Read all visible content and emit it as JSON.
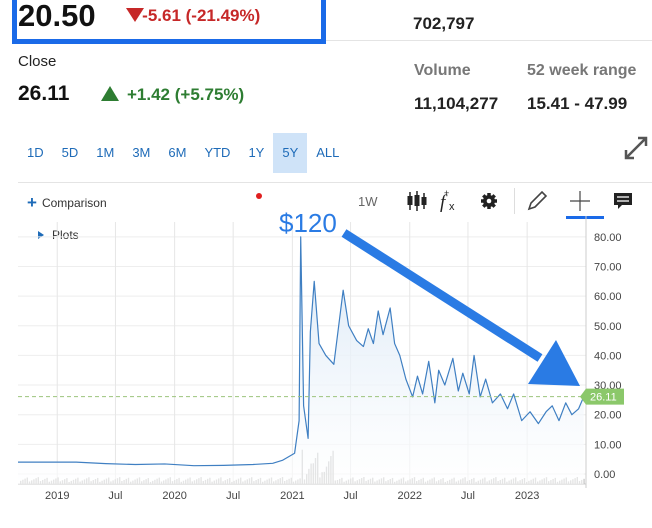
{
  "header": {
    "price": "20.50",
    "change": "-5.61 (-21.49%)",
    "previous_volume": "702,797"
  },
  "close": {
    "label": "Close",
    "price": "26.11",
    "change": "+1.42 (+5.75%)"
  },
  "stats": {
    "volume_label": "Volume",
    "volume_value": "11,104,277",
    "range_label": "52 week range",
    "range_value": "15.41 - 47.99"
  },
  "time_ranges": [
    "1D",
    "5D",
    "1M",
    "3M",
    "6M",
    "YTD",
    "1Y",
    "5Y",
    "ALL"
  ],
  "active_range": "5Y",
  "chart_controls": {
    "comparison_label": "Comparison",
    "plots_label": "Plots",
    "interval_label": "1W"
  },
  "annotation": {
    "text": "$120"
  },
  "colors": {
    "line": "#3f7fc2",
    "area": "#d7e6f5",
    "down": "#c62828",
    "up": "#2e7d32",
    "accent": "#1a6ae8",
    "last_price_tag": "#8bc86a"
  },
  "icons": [
    "plus-icon",
    "play-icon",
    "candlestick-icon",
    "function-icon",
    "gear-icon",
    "pencil-icon",
    "crosshair-icon",
    "comment-icon",
    "expand-icon",
    "arrow-annotation"
  ],
  "chart_data": {
    "type": "area",
    "title": "",
    "x_tick_labels": [
      "2019",
      "Jul",
      "2020",
      "Jul",
      "2021",
      "Jul",
      "2022",
      "Jul",
      "2023"
    ],
    "y_tick_labels": [
      "0.00",
      "10.00",
      "20.00",
      "30.00",
      "40.00",
      "50.00",
      "60.00",
      "70.00",
      "80.00"
    ],
    "ylim": [
      0,
      85
    ],
    "grid": true,
    "last_price_label": "26.11",
    "last_price": 26.11,
    "series": [
      {
        "x": [
          "2018-09",
          "2018-12",
          "2019-03",
          "2019-06",
          "2019-09",
          "2019-12",
          "2020-03",
          "2020-06",
          "2020-09",
          "2020-11",
          "2020-12",
          "2021-01-08",
          "2021-01-22",
          "2021-01-27",
          "2021-02-05",
          "2021-02-19",
          "2021-02-26",
          "2021-03-10",
          "2021-03-25",
          "2021-04-15",
          "2021-05-10",
          "2021-06-08",
          "2021-06-25",
          "2021-07-20",
          "2021-08-10",
          "2021-08-25",
          "2021-09-10",
          "2021-09-25",
          "2021-10-10",
          "2021-11-01",
          "2021-11-15",
          "2021-12-01",
          "2021-12-20",
          "2022-01-10",
          "2022-01-25",
          "2022-02-10",
          "2022-03-01",
          "2022-03-20",
          "2022-04-01",
          "2022-04-20",
          "2022-05-15",
          "2022-06-01",
          "2022-06-15",
          "2022-07-05",
          "2022-07-20",
          "2022-08-08",
          "2022-08-25",
          "2022-09-15",
          "2022-10-10",
          "2022-11-01",
          "2022-11-20",
          "2022-12-15",
          "2023-01-10",
          "2023-02-05",
          "2023-03-01",
          "2023-03-20",
          "2023-04-10",
          "2023-05-01",
          "2023-05-20",
          "2023-06-10",
          "2023-06-26"
        ],
        "y": [
          4,
          4,
          4,
          3.5,
          3.2,
          3.4,
          2.8,
          2.9,
          3.2,
          3.6,
          4.6,
          7,
          18,
          80,
          23,
          12,
          48,
          65,
          44,
          40,
          37,
          62,
          50,
          45,
          43,
          49,
          44,
          55,
          47,
          56,
          44,
          40,
          32,
          26,
          33,
          27,
          38,
          24,
          35,
          30,
          39,
          28,
          34,
          27,
          40,
          26,
          32,
          24,
          27,
          22,
          27,
          18,
          21,
          17,
          21,
          23,
          18,
          24,
          20,
          22,
          26.11
        ]
      }
    ]
  }
}
